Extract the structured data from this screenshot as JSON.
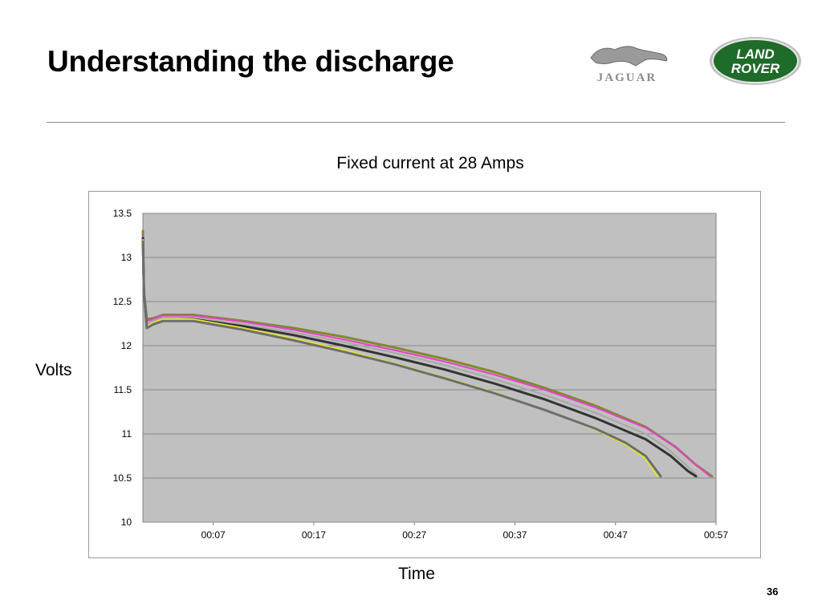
{
  "slide": {
    "title": "Understanding the discharge",
    "page_number": "36"
  },
  "logos": {
    "jaguar": "JAGUAR",
    "landrover_line1": "LAND",
    "landrover_line2": "ROVER"
  },
  "colors": {
    "plot_bg": "#c0c0c0",
    "grid": "#888888"
  },
  "chart_data": {
    "type": "line",
    "title": "Fixed current at 28 Amps",
    "xlabel": "Time",
    "ylabel": "Volts",
    "ylim": [
      10,
      13.5
    ],
    "xlim_minutes": [
      0,
      57
    ],
    "grid": true,
    "legend": "none",
    "x_ticks": [
      "00:07",
      "00:17",
      "00:27",
      "00:37",
      "00:47",
      "00:57"
    ],
    "y_ticks": [
      "10",
      "10.5",
      "11",
      "11.5",
      "12",
      "12.5",
      "13",
      "13.5"
    ],
    "series": [
      {
        "color": "#7f8a2e",
        "width": 3,
        "points": [
          [
            0.0,
            13.3
          ],
          [
            0.1,
            12.6
          ],
          [
            0.4,
            12.3
          ],
          [
            1.0,
            12.31
          ],
          [
            2.0,
            12.35
          ],
          [
            5.0,
            12.35
          ],
          [
            10.0,
            12.28
          ],
          [
            15.0,
            12.2
          ],
          [
            20.0,
            12.1
          ],
          [
            25.0,
            11.98
          ],
          [
            30.0,
            11.85
          ],
          [
            35.0,
            11.7
          ],
          [
            40.0,
            11.52
          ],
          [
            45.0,
            11.32
          ],
          [
            50.0,
            11.08
          ],
          [
            53.0,
            10.85
          ],
          [
            55.0,
            10.65
          ],
          [
            56.6,
            10.52
          ]
        ]
      },
      {
        "color": "#e83fd2",
        "width": 2,
        "points": [
          [
            0.0,
            13.25
          ],
          [
            0.1,
            12.6
          ],
          [
            0.4,
            12.28
          ],
          [
            1.0,
            12.3
          ],
          [
            2.0,
            12.34
          ],
          [
            5.0,
            12.34
          ],
          [
            10.0,
            12.27
          ],
          [
            15.0,
            12.18
          ],
          [
            20.0,
            12.07
          ],
          [
            25.0,
            11.95
          ],
          [
            30.0,
            11.82
          ],
          [
            35.0,
            11.67
          ],
          [
            40.0,
            11.5
          ],
          [
            45.0,
            11.3
          ],
          [
            50.0,
            11.07
          ],
          [
            53.0,
            10.85
          ],
          [
            55.0,
            10.65
          ],
          [
            56.4,
            10.52
          ]
        ]
      },
      {
        "color": "#a8a8a8",
        "width": 2,
        "points": [
          [
            0.0,
            13.2
          ],
          [
            0.1,
            12.6
          ],
          [
            0.4,
            12.25
          ],
          [
            1.0,
            12.28
          ],
          [
            2.0,
            12.32
          ],
          [
            5.0,
            12.32
          ],
          [
            10.0,
            12.24
          ],
          [
            15.0,
            12.15
          ],
          [
            20.0,
            12.04
          ],
          [
            25.0,
            11.92
          ],
          [
            30.0,
            11.78
          ],
          [
            35.0,
            11.62
          ],
          [
            40.0,
            11.44
          ],
          [
            45.0,
            11.24
          ],
          [
            50.0,
            11.0
          ],
          [
            52.0,
            10.85
          ],
          [
            54.0,
            10.65
          ],
          [
            55.2,
            10.52
          ]
        ]
      },
      {
        "color": "#333333",
        "width": 3,
        "points": [
          [
            0.0,
            13.22
          ],
          [
            0.1,
            12.6
          ],
          [
            0.4,
            12.2
          ],
          [
            1.0,
            12.25
          ],
          [
            2.0,
            12.29
          ],
          [
            5.0,
            12.3
          ],
          [
            10.0,
            12.22
          ],
          [
            15.0,
            12.12
          ],
          [
            20.0,
            12.0
          ],
          [
            25.0,
            11.87
          ],
          [
            30.0,
            11.73
          ],
          [
            35.0,
            11.57
          ],
          [
            40.0,
            11.39
          ],
          [
            45.0,
            11.18
          ],
          [
            50.0,
            10.94
          ],
          [
            52.5,
            10.75
          ],
          [
            54.2,
            10.58
          ],
          [
            55.0,
            10.52
          ]
        ]
      },
      {
        "color": "#e6e62e",
        "width": 2,
        "points": [
          [
            0.0,
            13.2
          ],
          [
            0.1,
            12.6
          ],
          [
            0.4,
            12.22
          ],
          [
            1.0,
            12.26
          ],
          [
            2.0,
            12.3
          ],
          [
            5.0,
            12.3
          ],
          [
            10.0,
            12.2
          ],
          [
            15.0,
            12.08
          ],
          [
            20.0,
            11.95
          ],
          [
            25.0,
            11.8
          ],
          [
            30.0,
            11.64
          ],
          [
            35.0,
            11.47
          ],
          [
            40.0,
            11.27
          ],
          [
            45.0,
            11.05
          ],
          [
            48.0,
            10.88
          ],
          [
            50.0,
            10.72
          ],
          [
            51.2,
            10.52
          ]
        ]
      },
      {
        "color": "#6e6e6e",
        "width": 3,
        "points": [
          [
            0.0,
            13.18
          ],
          [
            0.1,
            12.6
          ],
          [
            0.4,
            12.2
          ],
          [
            1.0,
            12.24
          ],
          [
            2.0,
            12.28
          ],
          [
            5.0,
            12.28
          ],
          [
            10.0,
            12.18
          ],
          [
            15.0,
            12.06
          ],
          [
            20.0,
            11.93
          ],
          [
            25.0,
            11.79
          ],
          [
            30.0,
            11.63
          ],
          [
            35.0,
            11.46
          ],
          [
            40.0,
            11.27
          ],
          [
            45.0,
            11.06
          ],
          [
            48.0,
            10.9
          ],
          [
            50.0,
            10.75
          ],
          [
            51.5,
            10.52
          ]
        ]
      }
    ]
  }
}
